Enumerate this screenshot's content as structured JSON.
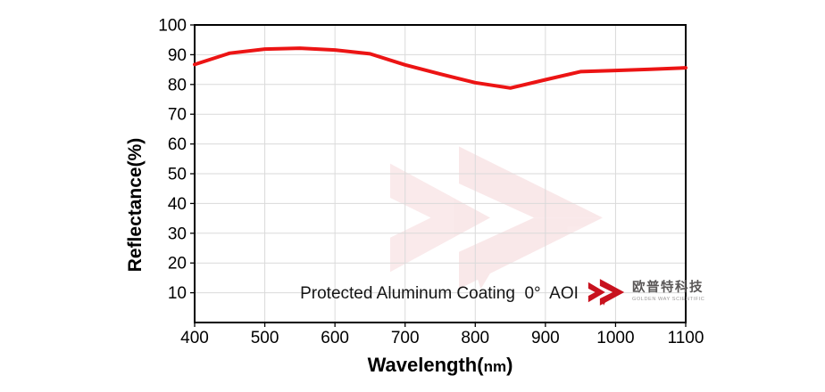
{
  "chart_data": {
    "type": "line",
    "title": "",
    "ylabel": "Reflectance(%)",
    "xlabel": {
      "prefix": "Wavelength(",
      "unit": "nm",
      "suffix": ")"
    },
    "xlim": [
      400,
      1100
    ],
    "ylim": [
      0,
      100
    ],
    "x_ticks": [
      400,
      500,
      600,
      700,
      800,
      900,
      1000,
      1100
    ],
    "y_ticks": [
      10,
      20,
      30,
      40,
      50,
      60,
      70,
      80,
      90,
      100
    ],
    "grid": true,
    "grid_color": "#dadada",
    "axis_color": "#000000",
    "legend_position": "none",
    "x": [
      400,
      450,
      500,
      550,
      600,
      650,
      700,
      750,
      800,
      850,
      900,
      950,
      1000,
      1050,
      1100
    ],
    "series": [
      {
        "name": "Protected Aluminum Coating 0° AOI",
        "color": "#ec1414",
        "values": [
          86.7,
          90.5,
          91.9,
          92.2,
          91.6,
          90.3,
          86.6,
          83.5,
          80.6,
          78.8,
          81.6,
          84.3,
          84.7,
          85.1,
          85.6
        ]
      }
    ],
    "annotation": "Protected Aluminum Coating  0°  AOI"
  },
  "logo": {
    "cn": "欧普特科技",
    "en": "GOLDEN WAY SCIENTIFIC",
    "color": "#c8121e",
    "watermark_opacity": "0.09"
  }
}
